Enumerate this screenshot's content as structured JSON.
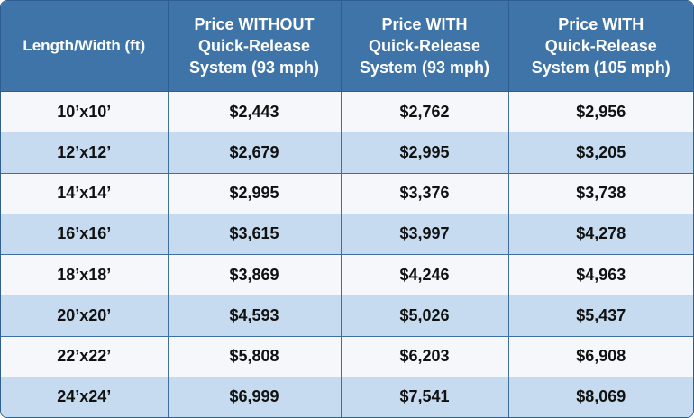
{
  "table": {
    "headers": [
      {
        "lines": [
          "Length/Width (ft)"
        ]
      },
      {
        "lines": [
          "Price WITHOUT",
          "Quick-Release",
          "System (93 mph)"
        ]
      },
      {
        "lines": [
          "Price WITH",
          "Quick-Release",
          "System (93 mph)"
        ]
      },
      {
        "lines": [
          "Price WITH",
          "Quick-Release",
          "System (105 mph)"
        ]
      }
    ],
    "rows": [
      [
        "10’x10’",
        "$2,443",
        "$2,762",
        "$2,956"
      ],
      [
        "12’x12’",
        "$2,679",
        "$2,995",
        "$3,205"
      ],
      [
        "14’x14’",
        "$2,995",
        "$3,376",
        "$3,738"
      ],
      [
        "16’x16’",
        "$3,615",
        "$3,997",
        "$4,278"
      ],
      [
        "18’x18’",
        "$3,869",
        "$4,246",
        "$4,963"
      ],
      [
        "20’x20’",
        "$4,593",
        "$5,026",
        "$5,437"
      ],
      [
        "22’x22’",
        "$5,808",
        "$6,203",
        "$6,908"
      ],
      [
        "24’x24’",
        "$6,999",
        "$7,541",
        "$8,069"
      ]
    ]
  },
  "colors": {
    "header_bg": "#3f74a8",
    "row_light": "#f5f7fb",
    "row_blue": "#c6dbef",
    "border": "#2f5f91"
  }
}
